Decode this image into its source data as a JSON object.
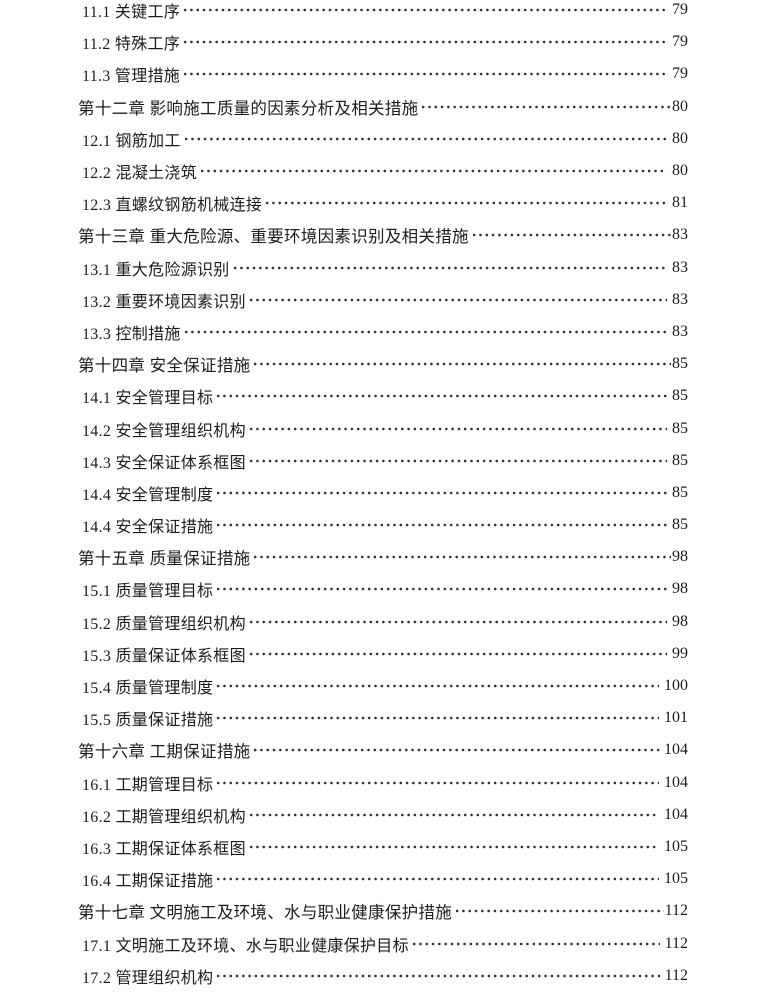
{
  "colors": {
    "background": "#ffffff",
    "text": "#1c1c1c"
  },
  "toc": {
    "entries": [
      {
        "type": "section",
        "label": "11.1 关键工序",
        "page": "79"
      },
      {
        "type": "section",
        "label": "11.2 特殊工序",
        "page": "79"
      },
      {
        "type": "section",
        "label": "11.3 管理措施",
        "page": "79"
      },
      {
        "type": "chapter",
        "label": "第十二章 影响施工质量的因素分析及相关措施",
        "page": "80"
      },
      {
        "type": "section",
        "label": "12.1 钢筋加工",
        "page": "80"
      },
      {
        "type": "section",
        "label": "12.2 混凝土浇筑",
        "page": "80"
      },
      {
        "type": "section",
        "label": "12.3 直螺纹钢筋机械连接",
        "page": "81"
      },
      {
        "type": "chapter",
        "label": "第十三章 重大危险源、重要环境因素识别及相关措施",
        "page": "83"
      },
      {
        "type": "section",
        "label": "13.1 重大危险源识别",
        "page": "83"
      },
      {
        "type": "section",
        "label": "13.2 重要环境因素识别",
        "page": "83"
      },
      {
        "type": "section",
        "label": "13.3 控制措施",
        "page": "83"
      },
      {
        "type": "chapter",
        "label": "第十四章 安全保证措施",
        "page": "85"
      },
      {
        "type": "section",
        "label": "14.1 安全管理目标",
        "page": "85"
      },
      {
        "type": "section",
        "label": "14.2 安全管理组织机构",
        "page": "85"
      },
      {
        "type": "section",
        "label": "14.3 安全保证体系框图",
        "page": "85"
      },
      {
        "type": "section",
        "label": "14.4 安全管理制度",
        "page": "85"
      },
      {
        "type": "section",
        "label": "14.4 安全保证措施",
        "page": "85"
      },
      {
        "type": "chapter",
        "label": "第十五章 质量保证措施",
        "page": "98"
      },
      {
        "type": "section",
        "label": "15.1 质量管理目标",
        "page": "98"
      },
      {
        "type": "section",
        "label": "15.2 质量管理组织机构",
        "page": "98"
      },
      {
        "type": "section",
        "label": "15.3 质量保证体系框图",
        "page": "99"
      },
      {
        "type": "section",
        "label": "15.4 质量管理制度",
        "page": "100"
      },
      {
        "type": "section",
        "label": "15.5 质量保证措施",
        "page": "101"
      },
      {
        "type": "chapter",
        "label": "第十六章 工期保证措施",
        "page": "104"
      },
      {
        "type": "section",
        "label": "16.1 工期管理目标",
        "page": "104"
      },
      {
        "type": "section",
        "label": "16.2 工期管理组织机构",
        "page": "104"
      },
      {
        "type": "section",
        "label": "16.3 工期保证体系框图",
        "page": "105"
      },
      {
        "type": "section",
        "label": "16.4 工期保证措施",
        "page": "105"
      },
      {
        "type": "chapter",
        "label": "第十七章 文明施工及环境、水与职业健康保护措施",
        "page": "112"
      },
      {
        "type": "section",
        "label": "17.1 文明施工及环境、水与职业健康保护目标",
        "page": "112"
      },
      {
        "type": "section",
        "label": "17.2 管理组织机构",
        "page": "112"
      }
    ]
  }
}
